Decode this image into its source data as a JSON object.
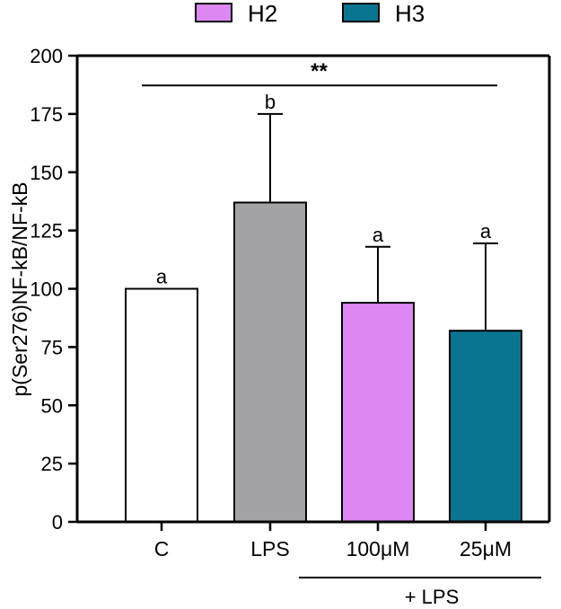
{
  "chart_data": {
    "type": "bar",
    "xlabel": "",
    "ylabel": "p(Ser276)NF-kB/NF-kB",
    "ylim": [
      0,
      200
    ],
    "yticks": [
      0,
      25,
      50,
      75,
      100,
      125,
      150,
      175,
      200
    ],
    "grid": false,
    "legend_position": "top",
    "legend": [
      {
        "label": "H2",
        "color": "#dd88f2"
      },
      {
        "label": "H3",
        "color": "#0a7590"
      }
    ],
    "categories": [
      "C",
      "LPS",
      "100μM",
      "25μM"
    ],
    "values": [
      100,
      137,
      94,
      82
    ],
    "error_upper": [
      100,
      175,
      118,
      119.5
    ],
    "letters": [
      "a",
      "b",
      "a",
      "a"
    ],
    "colors": [
      "#ffffff",
      "#a3a3a6",
      "#dd88f2",
      "#0a7590"
    ],
    "significance": {
      "label": "**",
      "from": "C",
      "to": "25μM",
      "y": 188
    },
    "group_bracket": {
      "label": "+ LPS",
      "from": "100μM",
      "to": "25μM"
    }
  }
}
